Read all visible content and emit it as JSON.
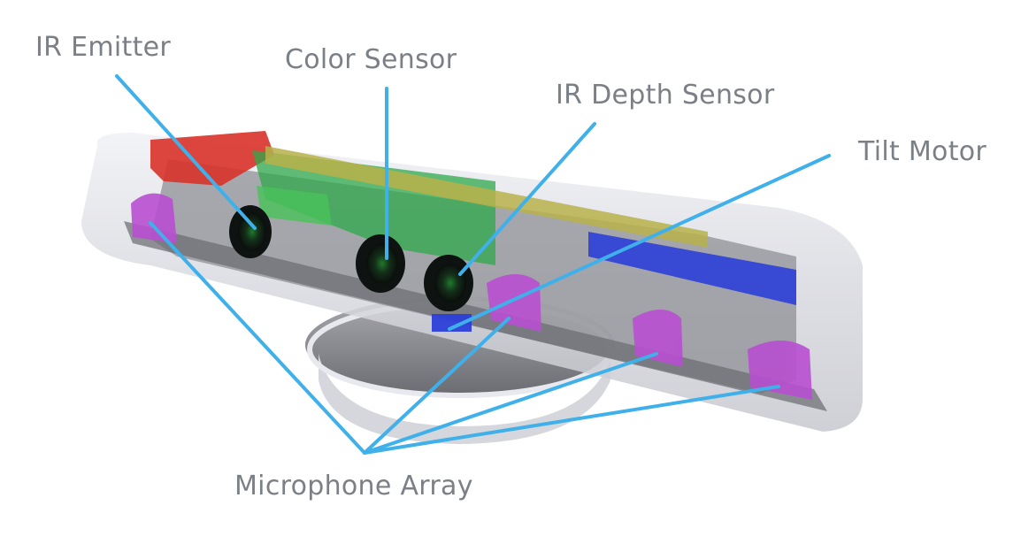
{
  "labels": {
    "ir_emitter": "IR Emitter",
    "color_sensor": "Color Sensor",
    "ir_depth_sensor": "IR Depth Sensor",
    "tilt_motor": "Tilt Motor",
    "microphone_array": "Microphone Array"
  },
  "colors": {
    "callout_line": "#3fb0ea",
    "label_text": "#7b7f86",
    "shell": "#dfe0e6",
    "chassis": "#8f9096",
    "emitter_part": "#d8322a",
    "board_green": "#2ea84a",
    "board_yellow": "#b7b24a",
    "blue_part": "#2c3fd8",
    "microphone": "#b84fd0",
    "lens": "#1b2a20"
  }
}
